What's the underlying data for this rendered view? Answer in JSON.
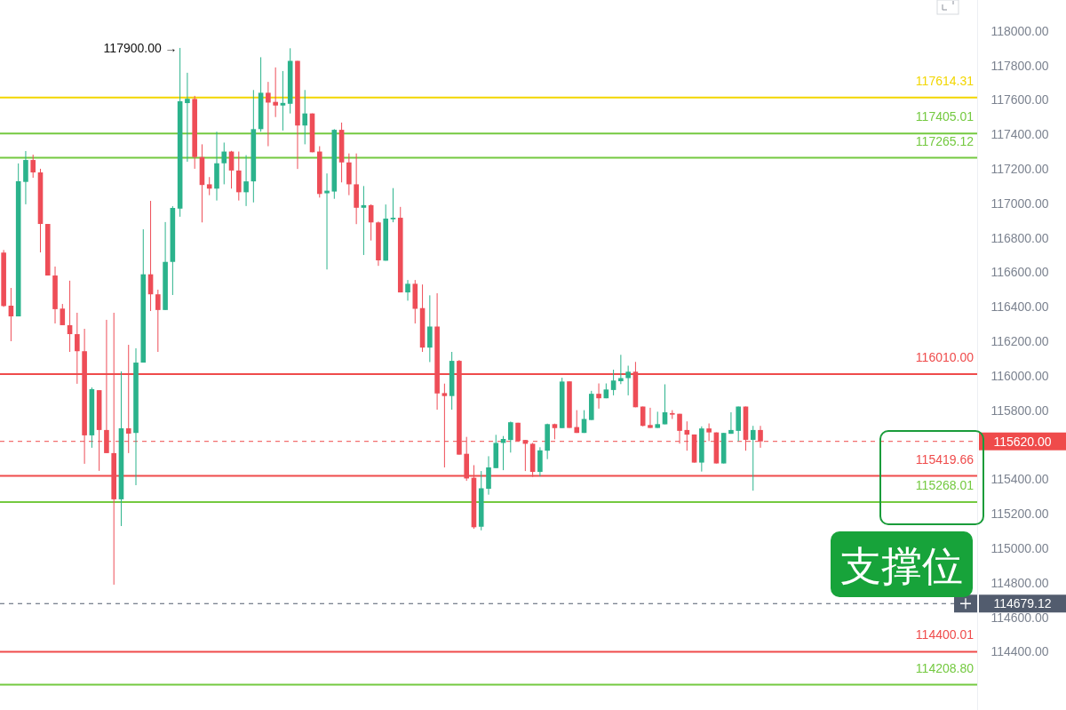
{
  "chart_data": {
    "type": "candlestick",
    "categories": [
      null,
      null,
      null,
      null,
      null,
      null,
      null,
      null,
      null,
      null,
      null,
      null,
      null,
      null,
      null,
      null,
      null,
      null,
      null,
      null,
      null,
      null,
      null,
      null,
      null,
      null,
      null,
      null,
      null,
      null,
      null,
      null,
      null,
      null,
      null,
      null,
      null,
      null,
      null,
      null,
      null,
      null,
      null,
      null,
      null,
      null,
      null,
      null,
      null,
      null,
      null,
      null,
      null,
      null,
      null,
      null,
      null,
      null,
      null,
      null,
      null,
      null,
      null,
      null,
      null,
      null,
      null,
      null,
      null,
      null,
      null,
      null,
      null,
      null,
      null,
      null,
      null,
      null,
      null,
      null,
      null,
      null,
      null,
      null,
      null,
      null,
      null,
      null,
      null,
      null,
      null,
      null,
      null,
      null,
      null,
      null,
      null,
      null,
      null,
      null,
      null,
      null,
      null,
      null,
      null,
      null,
      null,
      null,
      null,
      null,
      null,
      null,
      null,
      null,
      null,
      null,
      null,
      null,
      null,
      null,
      null,
      null,
      null,
      null,
      null,
      null,
      null,
      null,
      null,
      null,
      null,
      null,
      null
    ],
    "ohlc": [
      [
        116715,
        116730,
        116400,
        116405
      ],
      [
        116407,
        116510,
        116201,
        116345
      ],
      [
        116345,
        117232,
        116345,
        117129
      ],
      [
        117125,
        117304,
        116995,
        117252
      ],
      [
        117252,
        117283,
        117149,
        117180
      ],
      [
        117180,
        117201,
        116716,
        116881
      ],
      [
        116881,
        116881,
        116582,
        116582
      ],
      [
        116582,
        116634,
        116304,
        116387
      ],
      [
        116390,
        116417,
        116294,
        116294
      ],
      [
        116294,
        116552,
        116139,
        116242
      ],
      [
        116242,
        116366,
        115954,
        116143
      ],
      [
        116143,
        116273,
        115490,
        115655
      ],
      [
        115655,
        115933,
        115583,
        115923
      ],
      [
        115917,
        115917,
        115449,
        115686
      ],
      [
        115686,
        116325,
        115552,
        115552
      ],
      [
        115552,
        116366,
        114789,
        115284
      ],
      [
        115284,
        116026,
        115129,
        115696
      ],
      [
        115696,
        116180,
        115552,
        115665
      ],
      [
        115669,
        116160,
        115366,
        116077
      ],
      [
        116077,
        116850,
        116077,
        116589
      ],
      [
        116589,
        117015,
        116376,
        116473
      ],
      [
        116473,
        116500,
        116139,
        116382
      ],
      [
        116382,
        116892,
        116382,
        116661
      ],
      [
        116661,
        116984,
        116469,
        116974
      ],
      [
        116970,
        117902,
        116923,
        117593
      ],
      [
        117582,
        117758,
        117242,
        117607
      ],
      [
        117606,
        117624,
        117201,
        117269
      ],
      [
        117269,
        117343,
        116890,
        117107
      ],
      [
        117111,
        117153,
        117048,
        117086
      ],
      [
        117086,
        117416,
        117017,
        117233
      ],
      [
        117233,
        117353,
        117111,
        117301
      ],
      [
        117301,
        117305,
        117086,
        117191
      ],
      [
        117191,
        117301,
        117017,
        117065
      ],
      [
        117065,
        117280,
        116985,
        117128
      ],
      [
        117128,
        117658,
        117006,
        117431
      ],
      [
        117431,
        117848,
        117416,
        117642
      ],
      [
        117642,
        117705,
        117332,
        117585
      ],
      [
        117589,
        117789,
        117501,
        117568
      ],
      [
        117568,
        117768,
        117423,
        117583
      ],
      [
        117578,
        117900,
        117522,
        117827
      ],
      [
        117827,
        117827,
        117200,
        117452
      ],
      [
        117452,
        117658,
        117343,
        117522
      ],
      [
        117522,
        117522,
        117297,
        117297
      ],
      [
        117301,
        117332,
        117034,
        117055
      ],
      [
        117059,
        117174,
        116617,
        117074
      ],
      [
        117069,
        117431,
        117027,
        117427
      ],
      [
        117427,
        117469,
        117122,
        117238
      ],
      [
        117238,
        117290,
        117048,
        117111
      ],
      [
        117111,
        117290,
        116880,
        116975
      ],
      [
        116975,
        117101,
        116701,
        116990
      ],
      [
        116990,
        116995,
        116785,
        116890
      ],
      [
        116890,
        116895,
        116638,
        116670
      ],
      [
        116668,
        116994,
        116668,
        116912
      ],
      [
        116908,
        117089,
        116891,
        116917
      ],
      [
        116917,
        116980,
        116484,
        116484
      ],
      [
        116484,
        116556,
        116436,
        116534
      ],
      [
        116534,
        116556,
        116304,
        116389
      ],
      [
        116393,
        116530,
        116139,
        116164
      ],
      [
        116164,
        116467,
        116080,
        116286
      ],
      [
        116286,
        116479,
        115804,
        115898
      ],
      [
        115900,
        115955,
        115469,
        115883
      ],
      [
        115883,
        116139,
        115804,
        116087
      ],
      [
        116087,
        116092,
        115543,
        115543
      ],
      [
        115548,
        115646,
        115391,
        115405
      ],
      [
        115409,
        115482,
        115113,
        115122
      ],
      [
        115125,
        115448,
        115104,
        115348
      ],
      [
        115345,
        115534,
        115311,
        115469
      ],
      [
        115465,
        115658,
        115465,
        115611
      ],
      [
        115611,
        115651,
        115453,
        115634
      ],
      [
        115628,
        115735,
        115555,
        115731
      ],
      [
        115728,
        115728,
        115620,
        115623
      ],
      [
        115628,
        115628,
        115448,
        115606
      ],
      [
        115606,
        115611,
        115414,
        115443
      ],
      [
        115443,
        115586,
        115417,
        115568
      ],
      [
        115566,
        115723,
        115517,
        115720
      ],
      [
        115720,
        115723,
        115632,
        115697
      ],
      [
        115697,
        115989,
        115697,
        115967
      ],
      [
        115968,
        115968,
        115698,
        115698
      ],
      [
        115703,
        115801,
        115669,
        115669
      ],
      [
        115669,
        115801,
        115669,
        115750
      ],
      [
        115744,
        115913,
        115744,
        115896
      ],
      [
        115896,
        115956,
        115810,
        115870
      ],
      [
        115870,
        115956,
        115870,
        115921
      ],
      [
        115918,
        116036,
        115887,
        115973
      ],
      [
        115969,
        116122,
        115952,
        115987
      ],
      [
        115987,
        116059,
        115887,
        116024
      ],
      [
        116024,
        116081,
        115818,
        115818
      ],
      [
        115822,
        115822,
        115707,
        115710
      ],
      [
        115715,
        115815,
        115698,
        115698
      ],
      [
        115698,
        115792,
        115698,
        115720
      ],
      [
        115719,
        115951,
        115719,
        115789
      ],
      [
        115784,
        115801,
        115750,
        115775
      ],
      [
        115780,
        115780,
        115607,
        115681
      ],
      [
        115686,
        115736,
        115566,
        115659
      ],
      [
        115660,
        115660,
        115497,
        115497
      ],
      [
        115497,
        115707,
        115445,
        115695
      ],
      [
        115695,
        115724,
        115621,
        115672
      ],
      [
        115672,
        115672,
        115492,
        115492
      ],
      [
        115492,
        115669,
        115492,
        115669
      ],
      [
        115664,
        115789,
        115664,
        115686
      ],
      [
        115681,
        115822,
        115621,
        115822
      ],
      [
        115822,
        115822,
        115566,
        115629
      ],
      [
        115629,
        115710,
        115334,
        115686
      ],
      [
        115686,
        115710,
        115583,
        115620
      ],
      null,
      null,
      null,
      null,
      null,
      null,
      null,
      null,
      null,
      null,
      null,
      null,
      null,
      null,
      null,
      null,
      null,
      null,
      null,
      null,
      null,
      null,
      null,
      null,
      null,
      null,
      null,
      null,
      null
    ],
    "colors": [
      "#ee4d57",
      "#ee4d57",
      "#2bb38c",
      "#2bb38c",
      "#ee4d57",
      "#ee4d57",
      "#ee4d57",
      "#ee4d57",
      "#ee4d57",
      "#ee4d57",
      "#ee4d57",
      "#ee4d57",
      "#2bb38c",
      "#ee4d57",
      "#ee4d57",
      "#ee4d57",
      "#2bb38c",
      "#ee4d57",
      "#2bb38c",
      "#2bb38c",
      "#ee4d57",
      "#ee4d57",
      "#2bb38c",
      "#2bb38c",
      "#2bb38c",
      "#2bb38c",
      "#ee4d57",
      "#ee4d57",
      "#ee4d57",
      "#2bb38c",
      "#2bb38c",
      "#ee4d57",
      "#ee4d57",
      "#2bb38c",
      "#2bb38c",
      "#2bb38c",
      "#ee4d57",
      "#ee4d57",
      "#2bb38c",
      "#2bb38c",
      "#ee4d57",
      "#2bb38c",
      "#ee4d57",
      "#ee4d57",
      "#2bb38c",
      "#2bb38c",
      "#ee4d57",
      "#ee4d57",
      "#ee4d57",
      "#2bb38c",
      "#ee4d57",
      "#ee4d57",
      "#2bb38c",
      "#2bb38c",
      "#ee4d57",
      "#2bb38c",
      "#ee4d57",
      "#ee4d57",
      "#2bb38c",
      "#ee4d57",
      "#ee4d57",
      "#2bb38c",
      "#ee4d57",
      "#ee4d57",
      "#ee4d57",
      "#2bb38c",
      "#2bb38c",
      "#2bb38c",
      "#2bb38c",
      "#2bb38c",
      "#ee4d57",
      "#ee4d57",
      "#ee4d57",
      "#2bb38c",
      "#2bb38c",
      "#ee4d57",
      "#2bb38c",
      "#ee4d57",
      "#ee4d57",
      "#2bb38c",
      "#2bb38c",
      "#ee4d57",
      "#2bb38c",
      "#2bb38c",
      "#2bb38c",
      "#2bb38c",
      "#ee4d57",
      "#ee4d57",
      "#ee4d57",
      "#2bb38c",
      "#2bb38c",
      "#ee4d57",
      "#ee4d57",
      "#ee4d57",
      "#ee4d57",
      "#2bb38c",
      "#ee4d57",
      "#ee4d57",
      "#2bb38c",
      "#2bb38c",
      "#2bb38c",
      "#ee4d57",
      "#2bb38c",
      "#ee4d57",
      null,
      null,
      null,
      null,
      null,
      null,
      null,
      null,
      null,
      null,
      null,
      null,
      null,
      null,
      null,
      null,
      null,
      null,
      null,
      null,
      null,
      null,
      null,
      null,
      null,
      null,
      null,
      null,
      null
    ],
    "ylim": [
      114062,
      118180
    ],
    "yticks": [
      {
        "value": 118000,
        "label": "118000.00"
      },
      {
        "value": 117800,
        "label": "117800.00"
      },
      {
        "value": 117600,
        "label": "117600.00"
      },
      {
        "value": 117400,
        "label": "117400.00"
      },
      {
        "value": 117200,
        "label": "117200.00"
      },
      {
        "value": 117000,
        "label": "117000.00"
      },
      {
        "value": 116800,
        "label": "116800.00"
      },
      {
        "value": 116600,
        "label": "116600.00"
      },
      {
        "value": 116400,
        "label": "116400.00"
      },
      {
        "value": 116200,
        "label": "116200.00"
      },
      {
        "value": 116000,
        "label": "116000.00"
      },
      {
        "value": 115800,
        "label": "115800.00"
      },
      {
        "value": 115400,
        "label": "115400.00"
      },
      {
        "value": 115200,
        "label": "115200.00"
      },
      {
        "value": 115000,
        "label": "115000.00"
      },
      {
        "value": 114800,
        "label": "114800.00"
      },
      {
        "value": 114600,
        "label": "114600.00"
      },
      {
        "value": 114400,
        "label": "114400.00"
      }
    ],
    "tick_labels": "y",
    "ref_lines": [
      {
        "axis": "y",
        "value": 117614.31,
        "label": "117614.31",
        "color": "#f2d600",
        "line_style": "solid"
      },
      {
        "axis": "y",
        "value": 117405.01,
        "label": "117405.01",
        "color": "#74c940",
        "line_style": "solid"
      },
      {
        "axis": "y",
        "value": 117265.12,
        "label": "117265.12",
        "color": "#74c940",
        "line_style": "solid"
      },
      {
        "axis": "y",
        "value": 116010.0,
        "label": "116010.00",
        "color": "#ef4b4b",
        "line_style": "solid"
      },
      {
        "axis": "y",
        "value": 115620.0,
        "label": "115620.00",
        "color": "#ef4b4b",
        "line_style": "dashed"
      },
      {
        "axis": "y",
        "value": 115419.66,
        "label": "115419.66",
        "color": "#ef4b4b",
        "line_style": "solid"
      },
      {
        "axis": "y",
        "value": 115268.01,
        "label": "115268.01",
        "color": "#74c940",
        "line_style": "solid"
      },
      {
        "axis": "y",
        "value": 114679.12,
        "label": "114679.12",
        "color": "#525c6e",
        "line_style": "dashed"
      },
      {
        "axis": "y",
        "value": 114400.01,
        "label": "114400.01",
        "color": "#ef4b4b",
        "line_style": "solid"
      },
      {
        "axis": "y",
        "value": 114208.8,
        "label": "114208.80",
        "color": "#74c940",
        "line_style": "solid"
      }
    ],
    "annotations": [
      "117900.00 →",
      "支撑位"
    ]
  }
}
